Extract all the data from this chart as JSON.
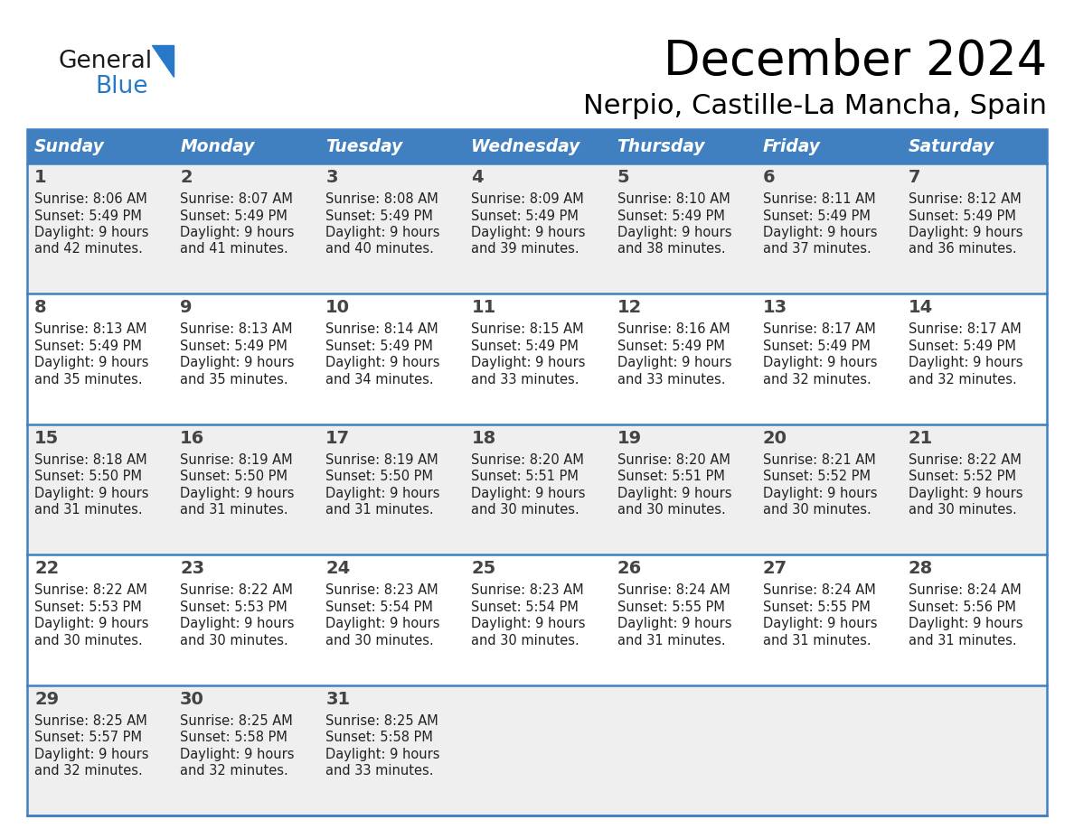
{
  "title": "December 2024",
  "subtitle": "Nerpio, Castille-La Mancha, Spain",
  "days_of_week": [
    "Sunday",
    "Monday",
    "Tuesday",
    "Wednesday",
    "Thursday",
    "Friday",
    "Saturday"
  ],
  "header_bg": "#4080C0",
  "header_text": "#FFFFFF",
  "row_bg_odd": "#EFEFEF",
  "row_bg_even": "#FFFFFF",
  "border_color": "#4080C0",
  "day_number_color": "#444444",
  "text_color": "#222222",
  "calendar_data": [
    [
      {
        "day": 1,
        "sunrise": "8:06 AM",
        "sunset": "5:49 PM",
        "daylight": "9 hours",
        "daylight2": "and 42 minutes."
      },
      {
        "day": 2,
        "sunrise": "8:07 AM",
        "sunset": "5:49 PM",
        "daylight": "9 hours",
        "daylight2": "and 41 minutes."
      },
      {
        "day": 3,
        "sunrise": "8:08 AM",
        "sunset": "5:49 PM",
        "daylight": "9 hours",
        "daylight2": "and 40 minutes."
      },
      {
        "day": 4,
        "sunrise": "8:09 AM",
        "sunset": "5:49 PM",
        "daylight": "9 hours",
        "daylight2": "and 39 minutes."
      },
      {
        "day": 5,
        "sunrise": "8:10 AM",
        "sunset": "5:49 PM",
        "daylight": "9 hours",
        "daylight2": "and 38 minutes."
      },
      {
        "day": 6,
        "sunrise": "8:11 AM",
        "sunset": "5:49 PM",
        "daylight": "9 hours",
        "daylight2": "and 37 minutes."
      },
      {
        "day": 7,
        "sunrise": "8:12 AM",
        "sunset": "5:49 PM",
        "daylight": "9 hours",
        "daylight2": "and 36 minutes."
      }
    ],
    [
      {
        "day": 8,
        "sunrise": "8:13 AM",
        "sunset": "5:49 PM",
        "daylight": "9 hours",
        "daylight2": "and 35 minutes."
      },
      {
        "day": 9,
        "sunrise": "8:13 AM",
        "sunset": "5:49 PM",
        "daylight": "9 hours",
        "daylight2": "and 35 minutes."
      },
      {
        "day": 10,
        "sunrise": "8:14 AM",
        "sunset": "5:49 PM",
        "daylight": "9 hours",
        "daylight2": "and 34 minutes."
      },
      {
        "day": 11,
        "sunrise": "8:15 AM",
        "sunset": "5:49 PM",
        "daylight": "9 hours",
        "daylight2": "and 33 minutes."
      },
      {
        "day": 12,
        "sunrise": "8:16 AM",
        "sunset": "5:49 PM",
        "daylight": "9 hours",
        "daylight2": "and 33 minutes."
      },
      {
        "day": 13,
        "sunrise": "8:17 AM",
        "sunset": "5:49 PM",
        "daylight": "9 hours",
        "daylight2": "and 32 minutes."
      },
      {
        "day": 14,
        "sunrise": "8:17 AM",
        "sunset": "5:49 PM",
        "daylight": "9 hours",
        "daylight2": "and 32 minutes."
      }
    ],
    [
      {
        "day": 15,
        "sunrise": "8:18 AM",
        "sunset": "5:50 PM",
        "daylight": "9 hours",
        "daylight2": "and 31 minutes."
      },
      {
        "day": 16,
        "sunrise": "8:19 AM",
        "sunset": "5:50 PM",
        "daylight": "9 hours",
        "daylight2": "and 31 minutes."
      },
      {
        "day": 17,
        "sunrise": "8:19 AM",
        "sunset": "5:50 PM",
        "daylight": "9 hours",
        "daylight2": "and 31 minutes."
      },
      {
        "day": 18,
        "sunrise": "8:20 AM",
        "sunset": "5:51 PM",
        "daylight": "9 hours",
        "daylight2": "and 30 minutes."
      },
      {
        "day": 19,
        "sunrise": "8:20 AM",
        "sunset": "5:51 PM",
        "daylight": "9 hours",
        "daylight2": "and 30 minutes."
      },
      {
        "day": 20,
        "sunrise": "8:21 AM",
        "sunset": "5:52 PM",
        "daylight": "9 hours",
        "daylight2": "and 30 minutes."
      },
      {
        "day": 21,
        "sunrise": "8:22 AM",
        "sunset": "5:52 PM",
        "daylight": "9 hours",
        "daylight2": "and 30 minutes."
      }
    ],
    [
      {
        "day": 22,
        "sunrise": "8:22 AM",
        "sunset": "5:53 PM",
        "daylight": "9 hours",
        "daylight2": "and 30 minutes."
      },
      {
        "day": 23,
        "sunrise": "8:22 AM",
        "sunset": "5:53 PM",
        "daylight": "9 hours",
        "daylight2": "and 30 minutes."
      },
      {
        "day": 24,
        "sunrise": "8:23 AM",
        "sunset": "5:54 PM",
        "daylight": "9 hours",
        "daylight2": "and 30 minutes."
      },
      {
        "day": 25,
        "sunrise": "8:23 AM",
        "sunset": "5:54 PM",
        "daylight": "9 hours",
        "daylight2": "and 30 minutes."
      },
      {
        "day": 26,
        "sunrise": "8:24 AM",
        "sunset": "5:55 PM",
        "daylight": "9 hours",
        "daylight2": "and 31 minutes."
      },
      {
        "day": 27,
        "sunrise": "8:24 AM",
        "sunset": "5:55 PM",
        "daylight": "9 hours",
        "daylight2": "and 31 minutes."
      },
      {
        "day": 28,
        "sunrise": "8:24 AM",
        "sunset": "5:56 PM",
        "daylight": "9 hours",
        "daylight2": "and 31 minutes."
      }
    ],
    [
      {
        "day": 29,
        "sunrise": "8:25 AM",
        "sunset": "5:57 PM",
        "daylight": "9 hours",
        "daylight2": "and 32 minutes."
      },
      {
        "day": 30,
        "sunrise": "8:25 AM",
        "sunset": "5:58 PM",
        "daylight": "9 hours",
        "daylight2": "and 32 minutes."
      },
      {
        "day": 31,
        "sunrise": "8:25 AM",
        "sunset": "5:58 PM",
        "daylight": "9 hours",
        "daylight2": "and 33 minutes."
      },
      null,
      null,
      null,
      null
    ]
  ],
  "logo_color_general": "#1a1a1a",
  "logo_color_blue": "#2878C8"
}
